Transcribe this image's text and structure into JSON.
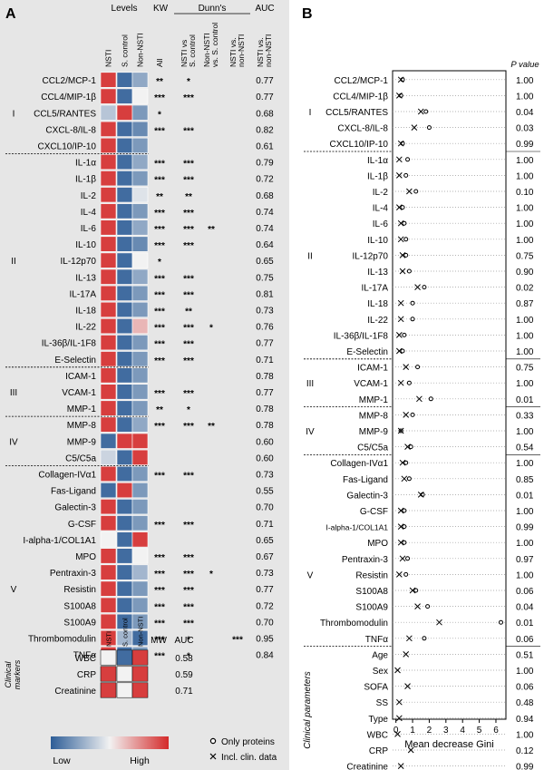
{
  "colors": {
    "low": "#2d5d97",
    "mid": "#f2f2f2",
    "high": "#d42a2a",
    "rule": "#000000"
  },
  "panel_a": {
    "letter": "A",
    "header_levels": "Levels",
    "header_kw": "KW",
    "header_dunns": "Dunn's",
    "header_auc": "AUC",
    "level_cols": [
      "NSTI",
      "S. control",
      "Non-NSTI"
    ],
    "kw_col": "All",
    "dunn_cols": [
      "NSTI vs S. control",
      "Non-NSTI vs. S. control",
      "NSTI vs. non-NSTI"
    ],
    "dunn_col_lines": [
      [
        "NSTI vs",
        "S. control"
      ],
      [
        "Non-NSTI",
        "vs. S. control"
      ],
      [
        "NSTI vs.",
        "non-NSTI"
      ]
    ],
    "auc_col_lines": [
      "NSTI vs.",
      "non-NSTI"
    ],
    "groups": [
      {
        "label": "I",
        "start": 0,
        "end": 4
      },
      {
        "label": "II",
        "start": 5,
        "end": 17
      },
      {
        "label": "III",
        "start": 18,
        "end": 20
      },
      {
        "label": "IV",
        "start": 21,
        "end": 23
      },
      {
        "label": "V",
        "start": 24,
        "end": 38
      }
    ],
    "rows": [
      {
        "name": "CCL2/MCP-1",
        "levels": [
          0.9,
          -0.9,
          -0.5
        ],
        "kw": "**",
        "d1": "*",
        "d2": "",
        "d3": "",
        "auc": "0.77"
      },
      {
        "name": "CCL4/MIP-1β",
        "levels": [
          0.9,
          -0.9,
          0.0
        ],
        "kw": "***",
        "d1": "***",
        "d2": "",
        "d3": "",
        "auc": "0.77"
      },
      {
        "name": "CCL5/RANTES",
        "levels": [
          -0.3,
          0.9,
          -0.6
        ],
        "kw": "*",
        "d1": "",
        "d2": "",
        "d3": "",
        "auc": "0.68"
      },
      {
        "name": "CXCL-8/IL-8",
        "levels": [
          0.9,
          -0.9,
          -0.7
        ],
        "kw": "***",
        "d1": "***",
        "d2": "",
        "d3": "",
        "auc": "0.82"
      },
      {
        "name": "CXCL10/IP-10",
        "levels": [
          0.9,
          -0.9,
          -0.6
        ],
        "kw": "",
        "d1": "",
        "d2": "",
        "d3": "",
        "auc": "0.61"
      },
      {
        "name": "IL-1α",
        "levels": [
          0.9,
          -0.9,
          -0.5
        ],
        "kw": "***",
        "d1": "***",
        "d2": "",
        "d3": "",
        "auc": "0.79"
      },
      {
        "name": "IL-1β",
        "levels": [
          0.9,
          -0.9,
          -0.6
        ],
        "kw": "***",
        "d1": "***",
        "d2": "",
        "d3": "",
        "auc": "0.72"
      },
      {
        "name": "IL-2",
        "levels": [
          0.9,
          -0.9,
          -0.1
        ],
        "kw": "**",
        "d1": "**",
        "d2": "",
        "d3": "",
        "auc": "0.68"
      },
      {
        "name": "IL-4",
        "levels": [
          0.9,
          -0.9,
          -0.6
        ],
        "kw": "***",
        "d1": "***",
        "d2": "",
        "d3": "",
        "auc": "0.74"
      },
      {
        "name": "IL-6",
        "levels": [
          0.9,
          -0.9,
          -0.5
        ],
        "kw": "***",
        "d1": "***",
        "d2": "**",
        "d3": "",
        "auc": "0.74"
      },
      {
        "name": "IL-10",
        "levels": [
          0.9,
          -0.9,
          -0.7
        ],
        "kw": "***",
        "d1": "***",
        "d2": "",
        "d3": "",
        "auc": "0.64"
      },
      {
        "name": "IL-12p70",
        "levels": [
          0.9,
          -0.9,
          0.0
        ],
        "kw": "*",
        "d1": "",
        "d2": "",
        "d3": "",
        "auc": "0.65"
      },
      {
        "name": "IL-13",
        "levels": [
          0.9,
          -0.9,
          -0.5
        ],
        "kw": "***",
        "d1": "***",
        "d2": "",
        "d3": "",
        "auc": "0.75"
      },
      {
        "name": "IL-17A",
        "levels": [
          0.9,
          -0.9,
          -0.6
        ],
        "kw": "***",
        "d1": "***",
        "d2": "",
        "d3": "",
        "auc": "0.81"
      },
      {
        "name": "IL-18",
        "levels": [
          0.9,
          -0.9,
          -0.6
        ],
        "kw": "***",
        "d1": "**",
        "d2": "",
        "d3": "",
        "auc": "0.73"
      },
      {
        "name": "IL-22",
        "levels": [
          0.9,
          -0.9,
          0.3
        ],
        "kw": "***",
        "d1": "***",
        "d2": "*",
        "d3": "",
        "auc": "0.76"
      },
      {
        "name": "IL-36β/IL-1F8",
        "levels": [
          0.9,
          -0.9,
          -0.6
        ],
        "kw": "***",
        "d1": "***",
        "d2": "",
        "d3": "",
        "auc": "0.77"
      },
      {
        "name": "E-Selectin",
        "levels": [
          0.9,
          -0.9,
          -0.6
        ],
        "kw": "***",
        "d1": "***",
        "d2": "",
        "d3": "",
        "auc": "0.71"
      },
      {
        "name": "ICAM-1",
        "levels": [
          0.9,
          -0.9,
          -0.6
        ],
        "kw": "",
        "d1": "",
        "d2": "",
        "d3": "",
        "auc": "0.78"
      },
      {
        "name": "VCAM-1",
        "levels": [
          0.9,
          -0.9,
          -0.6
        ],
        "kw": "***",
        "d1": "***",
        "d2": "",
        "d3": "",
        "auc": "0.77"
      },
      {
        "name": "MMP-1",
        "levels": [
          0.9,
          -0.9,
          -0.6
        ],
        "kw": "**",
        "d1": "*",
        "d2": "",
        "d3": "",
        "auc": "0.78"
      },
      {
        "name": "MMP-8",
        "levels": [
          0.9,
          -0.9,
          -0.5
        ],
        "kw": "***",
        "d1": "***",
        "d2": "**",
        "d3": "",
        "auc": "0.78"
      },
      {
        "name": "MMP-9",
        "levels": [
          -0.9,
          0.9,
          0.9
        ],
        "kw": "",
        "d1": "",
        "d2": "",
        "d3": "",
        "auc": "0.60"
      },
      {
        "name": "C5/C5a",
        "levels": [
          -0.2,
          -0.9,
          0.9
        ],
        "kw": "",
        "d1": "",
        "d2": "",
        "d3": "",
        "auc": "0.60"
      },
      {
        "name": "Collagen-IVα1",
        "levels": [
          0.9,
          -0.9,
          -0.6
        ],
        "kw": "***",
        "d1": "***",
        "d2": "",
        "d3": "",
        "auc": "0.73"
      },
      {
        "name": "Fas-Ligand",
        "levels": [
          -0.9,
          0.9,
          -0.6
        ],
        "kw": "",
        "d1": "",
        "d2": "",
        "d3": "",
        "auc": "0.55"
      },
      {
        "name": "Galectin-3",
        "levels": [
          0.9,
          -0.9,
          -0.6
        ],
        "kw": "",
        "d1": "",
        "d2": "",
        "d3": "",
        "auc": "0.70"
      },
      {
        "name": "G-CSF",
        "levels": [
          0.9,
          -0.9,
          -0.6
        ],
        "kw": "***",
        "d1": "***",
        "d2": "",
        "d3": "",
        "auc": "0.71"
      },
      {
        "name": "I-alpha-1/COL1A1",
        "levels": [
          0.0,
          -0.9,
          0.9
        ],
        "kw": "",
        "d1": "",
        "d2": "",
        "d3": "",
        "auc": "0.65"
      },
      {
        "name": "MPO",
        "levels": [
          0.9,
          -0.9,
          0.0
        ],
        "kw": "***",
        "d1": "***",
        "d2": "",
        "d3": "",
        "auc": "0.67"
      },
      {
        "name": "Pentraxin-3",
        "levels": [
          0.9,
          -0.9,
          -0.4
        ],
        "kw": "***",
        "d1": "***",
        "d2": "*",
        "d3": "",
        "auc": "0.73"
      },
      {
        "name": "Resistin",
        "levels": [
          0.9,
          -0.9,
          -0.6
        ],
        "kw": "***",
        "d1": "***",
        "d2": "",
        "d3": "",
        "auc": "0.77"
      },
      {
        "name": "S100A8",
        "levels": [
          0.9,
          -0.9,
          -0.6
        ],
        "kw": "***",
        "d1": "***",
        "d2": "",
        "d3": "",
        "auc": "0.72"
      },
      {
        "name": "S100A9",
        "levels": [
          0.9,
          -0.9,
          -0.6
        ],
        "kw": "***",
        "d1": "***",
        "d2": "",
        "d3": "",
        "auc": "0.70"
      },
      {
        "name": "Thrombomodulin",
        "levels": [
          0.9,
          -0.4,
          -0.9
        ],
        "kw": "***",
        "d1": "*",
        "d2": "",
        "d3": "***",
        "auc": "0.95"
      },
      {
        "name": "TNFα",
        "levels": [
          0.9,
          -0.9,
          -0.6
        ],
        "kw": "***",
        "d1": "*",
        "d2": "",
        "d3": "",
        "auc": "0.84"
      }
    ],
    "clinical": {
      "side_label_lines": [
        "Clinical",
        "markers"
      ],
      "level_cols": [
        "NSTI",
        "S. control",
        "Non-NSTI"
      ],
      "header_mw": "MW",
      "header_auc": "AUC",
      "rows": [
        {
          "name": "WBC",
          "levels": [
            0.0,
            -0.9,
            0.9
          ],
          "auc": "0.58"
        },
        {
          "name": "CRP",
          "levels": [
            0.9,
            0.0,
            0.9
          ],
          "auc": "0.59"
        },
        {
          "name": "Creatinine",
          "levels": [
            0.9,
            0.0,
            0.9
          ],
          "auc": "0.71"
        }
      ]
    },
    "legend": {
      "low": "Low",
      "high": "High"
    }
  },
  "chart_data": {
    "type": "scatter",
    "title": "",
    "xlabel": "Mean decrease Gini",
    "x_ticks": [
      0,
      1,
      2,
      3,
      4,
      5,
      6
    ],
    "xlim": [
      -0.2,
      6.6
    ],
    "grid": "dotted horizontal",
    "pvalue_header": "P value",
    "side_label": "Clinical parameters",
    "groups": [
      {
        "label": "I",
        "start": 0,
        "end": 4
      },
      {
        "label": "II",
        "start": 5,
        "end": 17
      },
      {
        "label": "III",
        "start": 18,
        "end": 20
      },
      {
        "label": "IV",
        "start": 21,
        "end": 23
      },
      {
        "label": "V",
        "start": 24,
        "end": 38
      }
    ],
    "series": [
      {
        "name": "Only proteins",
        "marker": "circle"
      },
      {
        "name": "Incl. clin. data",
        "marker": "cross"
      }
    ],
    "rows": [
      {
        "name": "CCL2/MCP-1",
        "proteins": 0.4,
        "clin": 0.3,
        "p": "1.00"
      },
      {
        "name": "CCL4/MIP-1β",
        "proteins": 0.3,
        "clin": 0.2,
        "p": "1.00"
      },
      {
        "name": "CCL5/RANTES",
        "proteins": 1.8,
        "clin": 1.5,
        "p": "0.04"
      },
      {
        "name": "CXCL-8/IL-8",
        "proteins": 2.0,
        "clin": 1.1,
        "p": "0.03"
      },
      {
        "name": "CXCL10/IP-10",
        "proteins": 0.4,
        "clin": 0.3,
        "p": "0.99"
      },
      {
        "name": "IL-1α",
        "proteins": 0.7,
        "clin": 0.2,
        "p": "1.00"
      },
      {
        "name": "IL-1β",
        "proteins": 0.6,
        "clin": 0.2,
        "p": "1.00"
      },
      {
        "name": "IL-2",
        "proteins": 1.2,
        "clin": 0.8,
        "p": "0.10"
      },
      {
        "name": "IL-4",
        "proteins": 0.4,
        "clin": 0.2,
        "p": "1.00"
      },
      {
        "name": "IL-6",
        "proteins": 0.5,
        "clin": 0.3,
        "p": "1.00"
      },
      {
        "name": "IL-10",
        "proteins": 0.6,
        "clin": 0.3,
        "p": "1.00"
      },
      {
        "name": "IL-12p70",
        "proteins": 0.6,
        "clin": 0.4,
        "p": "0.75"
      },
      {
        "name": "IL-13",
        "proteins": 0.8,
        "clin": 0.4,
        "p": "0.90"
      },
      {
        "name": "IL-17A",
        "proteins": 1.7,
        "clin": 1.3,
        "p": "0.02"
      },
      {
        "name": "IL-18",
        "proteins": 1.0,
        "clin": 0.3,
        "p": "0.87"
      },
      {
        "name": "IL-22",
        "proteins": 1.0,
        "clin": 0.3,
        "p": "1.00"
      },
      {
        "name": "IL-36β/IL-1F8",
        "proteins": 0.5,
        "clin": 0.2,
        "p": "1.00"
      },
      {
        "name": "E-Selectin",
        "proteins": 0.4,
        "clin": 0.2,
        "p": "1.00"
      },
      {
        "name": "ICAM-1",
        "proteins": 1.3,
        "clin": 0.6,
        "p": "0.75"
      },
      {
        "name": "VCAM-1",
        "proteins": 0.8,
        "clin": 0.3,
        "p": "1.00"
      },
      {
        "name": "MMP-1",
        "proteins": 2.1,
        "clin": 1.4,
        "p": "0.01"
      },
      {
        "name": "MMP-8",
        "proteins": 1.0,
        "clin": 0.6,
        "p": "0.33"
      },
      {
        "name": "MMP-9",
        "proteins": 0.3,
        "clin": 0.3,
        "p": "1.00"
      },
      {
        "name": "C5/C5a",
        "proteins": 0.9,
        "clin": 0.7,
        "p": "0.54"
      },
      {
        "name": "Collagen-IVα1",
        "proteins": 0.6,
        "clin": 0.4,
        "p": "1.00"
      },
      {
        "name": "Fas-Ligand",
        "proteins": 0.8,
        "clin": 0.5,
        "p": "0.85"
      },
      {
        "name": "Galectin-3",
        "proteins": 1.6,
        "clin": 1.5,
        "p": "0.01"
      },
      {
        "name": "G-CSF",
        "proteins": 0.5,
        "clin": 0.3,
        "p": "1.00"
      },
      {
        "name": "I-alpha-1/COL1A1",
        "proteins": 0.5,
        "clin": 0.3,
        "p": "0.99"
      },
      {
        "name": "MPO",
        "proteins": 0.5,
        "clin": 0.3,
        "p": "1.00"
      },
      {
        "name": "Pentraxin-3",
        "proteins": 0.7,
        "clin": 0.4,
        "p": "0.97"
      },
      {
        "name": "Resistin",
        "proteins": 0.6,
        "clin": 0.2,
        "p": "1.00"
      },
      {
        "name": "S100A8",
        "proteins": 1.2,
        "clin": 1.0,
        "p": "0.06"
      },
      {
        "name": "S100A9",
        "proteins": 1.9,
        "clin": 1.3,
        "p": "0.04"
      },
      {
        "name": "Thrombomodulin",
        "proteins": 6.3,
        "clin": 2.6,
        "p": "0.01"
      },
      {
        "name": "TNFα",
        "proteins": 1.7,
        "clin": 0.8,
        "p": "0.06"
      },
      {
        "name": "Age",
        "proteins": null,
        "clin": 0.6,
        "p": "0.51"
      },
      {
        "name": "Sex",
        "proteins": null,
        "clin": 0.1,
        "p": "1.00"
      },
      {
        "name": "SOFA",
        "proteins": null,
        "clin": 0.7,
        "p": "0.06"
      },
      {
        "name": "SS",
        "proteins": null,
        "clin": 0.2,
        "p": "0.48"
      },
      {
        "name": "Type",
        "proteins": null,
        "clin": 0.2,
        "p": "0.94"
      },
      {
        "name": "WBC",
        "proteins": null,
        "clin": 0.1,
        "p": "1.00"
      },
      {
        "name": "CRP",
        "proteins": null,
        "clin": 0.9,
        "p": "0.12"
      },
      {
        "name": "Creatinine",
        "proteins": null,
        "clin": 0.3,
        "p": "0.99"
      }
    ]
  }
}
